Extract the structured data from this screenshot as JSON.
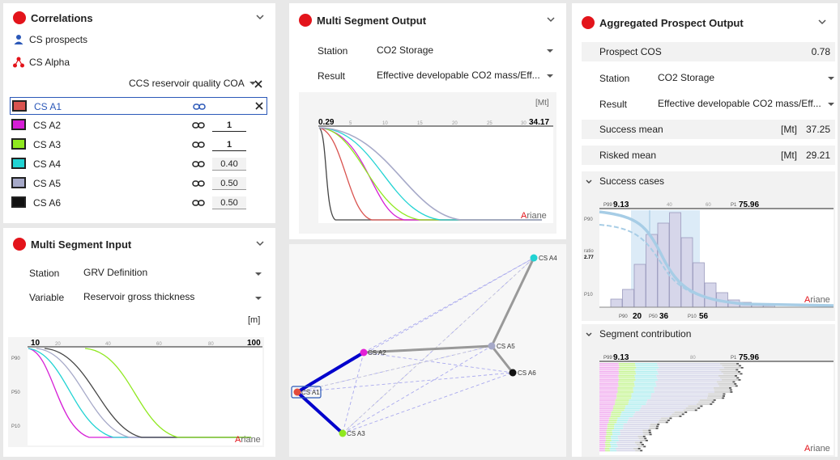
{
  "correlations": {
    "title": "Correlations",
    "prospects_label": "CS prospects",
    "alpha_label": "CS Alpha",
    "coa_select": "CCS reservoir quality COA",
    "items": [
      {
        "name": "CS A1",
        "color": "#d9534f",
        "value": ""
      },
      {
        "name": "CS A2",
        "color": "#d61fd6",
        "value": "1"
      },
      {
        "name": "CS A3",
        "color": "#8fe81f",
        "value": "1"
      },
      {
        "name": "CS A4",
        "color": "#22d3d3",
        "value": "0.40"
      },
      {
        "name": "CS A5",
        "color": "#a6a9c8",
        "value": "0.50"
      },
      {
        "name": "CS A6",
        "color": "#111111",
        "value": "0.50"
      }
    ]
  },
  "msi": {
    "title": "Multi Segment Input",
    "station_label": "Station",
    "station_value": "GRV Definition",
    "variable_label": "Variable",
    "variable_value": "Reservoir gross thickness",
    "unit": "[m]",
    "xmin": "10",
    "xmax": "100",
    "ticks": [
      "20",
      "40",
      "60",
      "80"
    ],
    "ylabels": [
      "P90",
      "P50",
      "P10"
    ],
    "brand_a": "A",
    "brand_rest": "riane"
  },
  "mso": {
    "title": "Multi Segment Output",
    "station_label": "Station",
    "station_value": "CO2 Storage",
    "result_label": "Result",
    "result_value": "Effective developable CO2 mass/Eff...",
    "unit": "[Mt]",
    "xmin": "0.29",
    "xmax": "34.17",
    "ticks": [
      "5",
      "10",
      "15",
      "20",
      "25",
      "30"
    ],
    "brand_a": "A",
    "brand_rest": "riane"
  },
  "network": {
    "nodes": [
      "CS A1",
      "CS A2",
      "CS A3",
      "CS A4",
      "CS A5",
      "CS A6"
    ]
  },
  "apo": {
    "title": "Aggregated Prospect Output",
    "cos_label": "Prospect COS",
    "cos_value": "0.78",
    "station_label": "Station",
    "station_value": "CO2 Storage",
    "result_label": "Result",
    "result_value": "Effective developable CO2 mass/Eff...",
    "success_mean_label": "Success mean",
    "success_mean_unit": "[Mt]",
    "success_mean_value": "37.25",
    "risked_mean_label": "Risked mean",
    "risked_mean_unit": "[Mt]",
    "risked_mean_value": "29.21",
    "success_cases_label": "Success cases",
    "segment_contrib_label": "Segment contribution",
    "hist": {
      "p99_label": "P99",
      "p99": "9.13",
      "tick40": "40",
      "tick60": "60",
      "p1_label": "P1",
      "p1": "75.96",
      "ratio_label": "ratio",
      "ratio": "2.77",
      "ylabels": [
        "P90",
        "P10"
      ],
      "p90_label": "P90",
      "p90": "20",
      "p50_label": "P50",
      "p50": "36",
      "p10_label": "P10",
      "p10": "56"
    },
    "seg": {
      "p99_label": "P99",
      "p99": "9.13",
      "tick80": "80",
      "p1_label": "P1",
      "p1": "75.96"
    },
    "brand_a": "A",
    "brand_rest": "riane"
  }
}
